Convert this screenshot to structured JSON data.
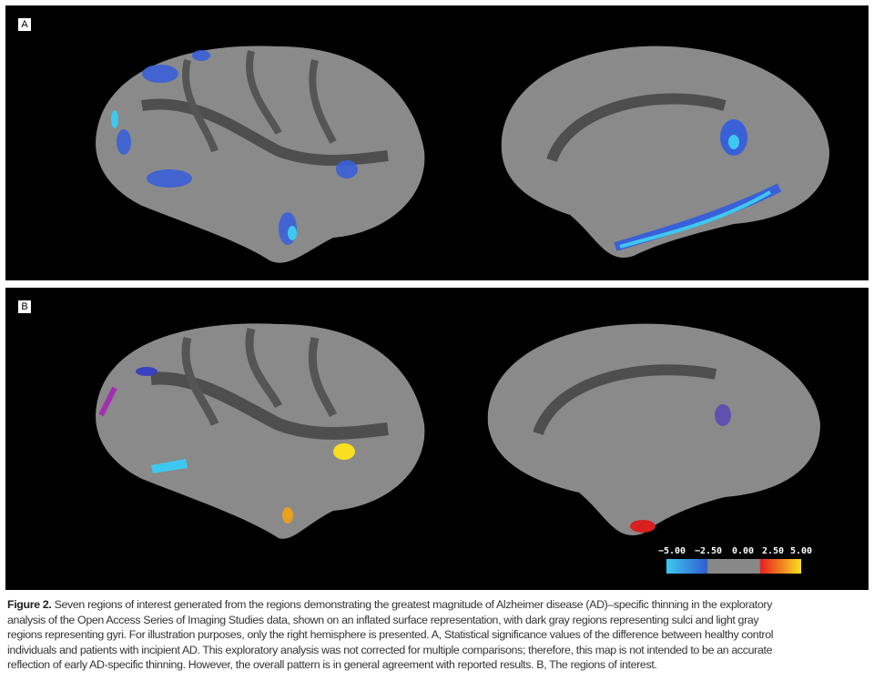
{
  "panels": [
    {
      "label": "A",
      "views": [
        "lateral",
        "medial"
      ]
    },
    {
      "label": "B",
      "views": [
        "lateral",
        "medial"
      ]
    }
  ],
  "colorbar": {
    "ticks": [
      "−5.00",
      "−2.50",
      "0.00",
      "2.50",
      "5.00"
    ],
    "colors": {
      "neg_max": "#3ec8f0",
      "neg_min": "#2f5fd0",
      "neutral": "#888888",
      "pos_min": "#e82020",
      "pos_max": "#f8e020"
    }
  },
  "caption": {
    "label": "Figure 2.",
    "lines": [
      "Seven regions of interest generated from the regions demonstrating the greatest magnitude of Alzheimer disease (AD)–specific thinning in the exploratory",
      "analysis of the Open Access Series of Imaging Studies data, shown on an inflated surface representation, with dark gray regions representing sulci and light gray",
      "regions representing gyri. For illustration purposes, only the right hemisphere is presented. A, Statistical significance values of the difference between healthy control",
      "individuals and patients with incipient AD. This exploratory analysis was not corrected for multiple comparisons; therefore, this map is not intended to be an accurate",
      "reflection of early AD-specific thinning. However, the overall pattern is in general agreement with reported results. B, The regions of interest."
    ]
  }
}
